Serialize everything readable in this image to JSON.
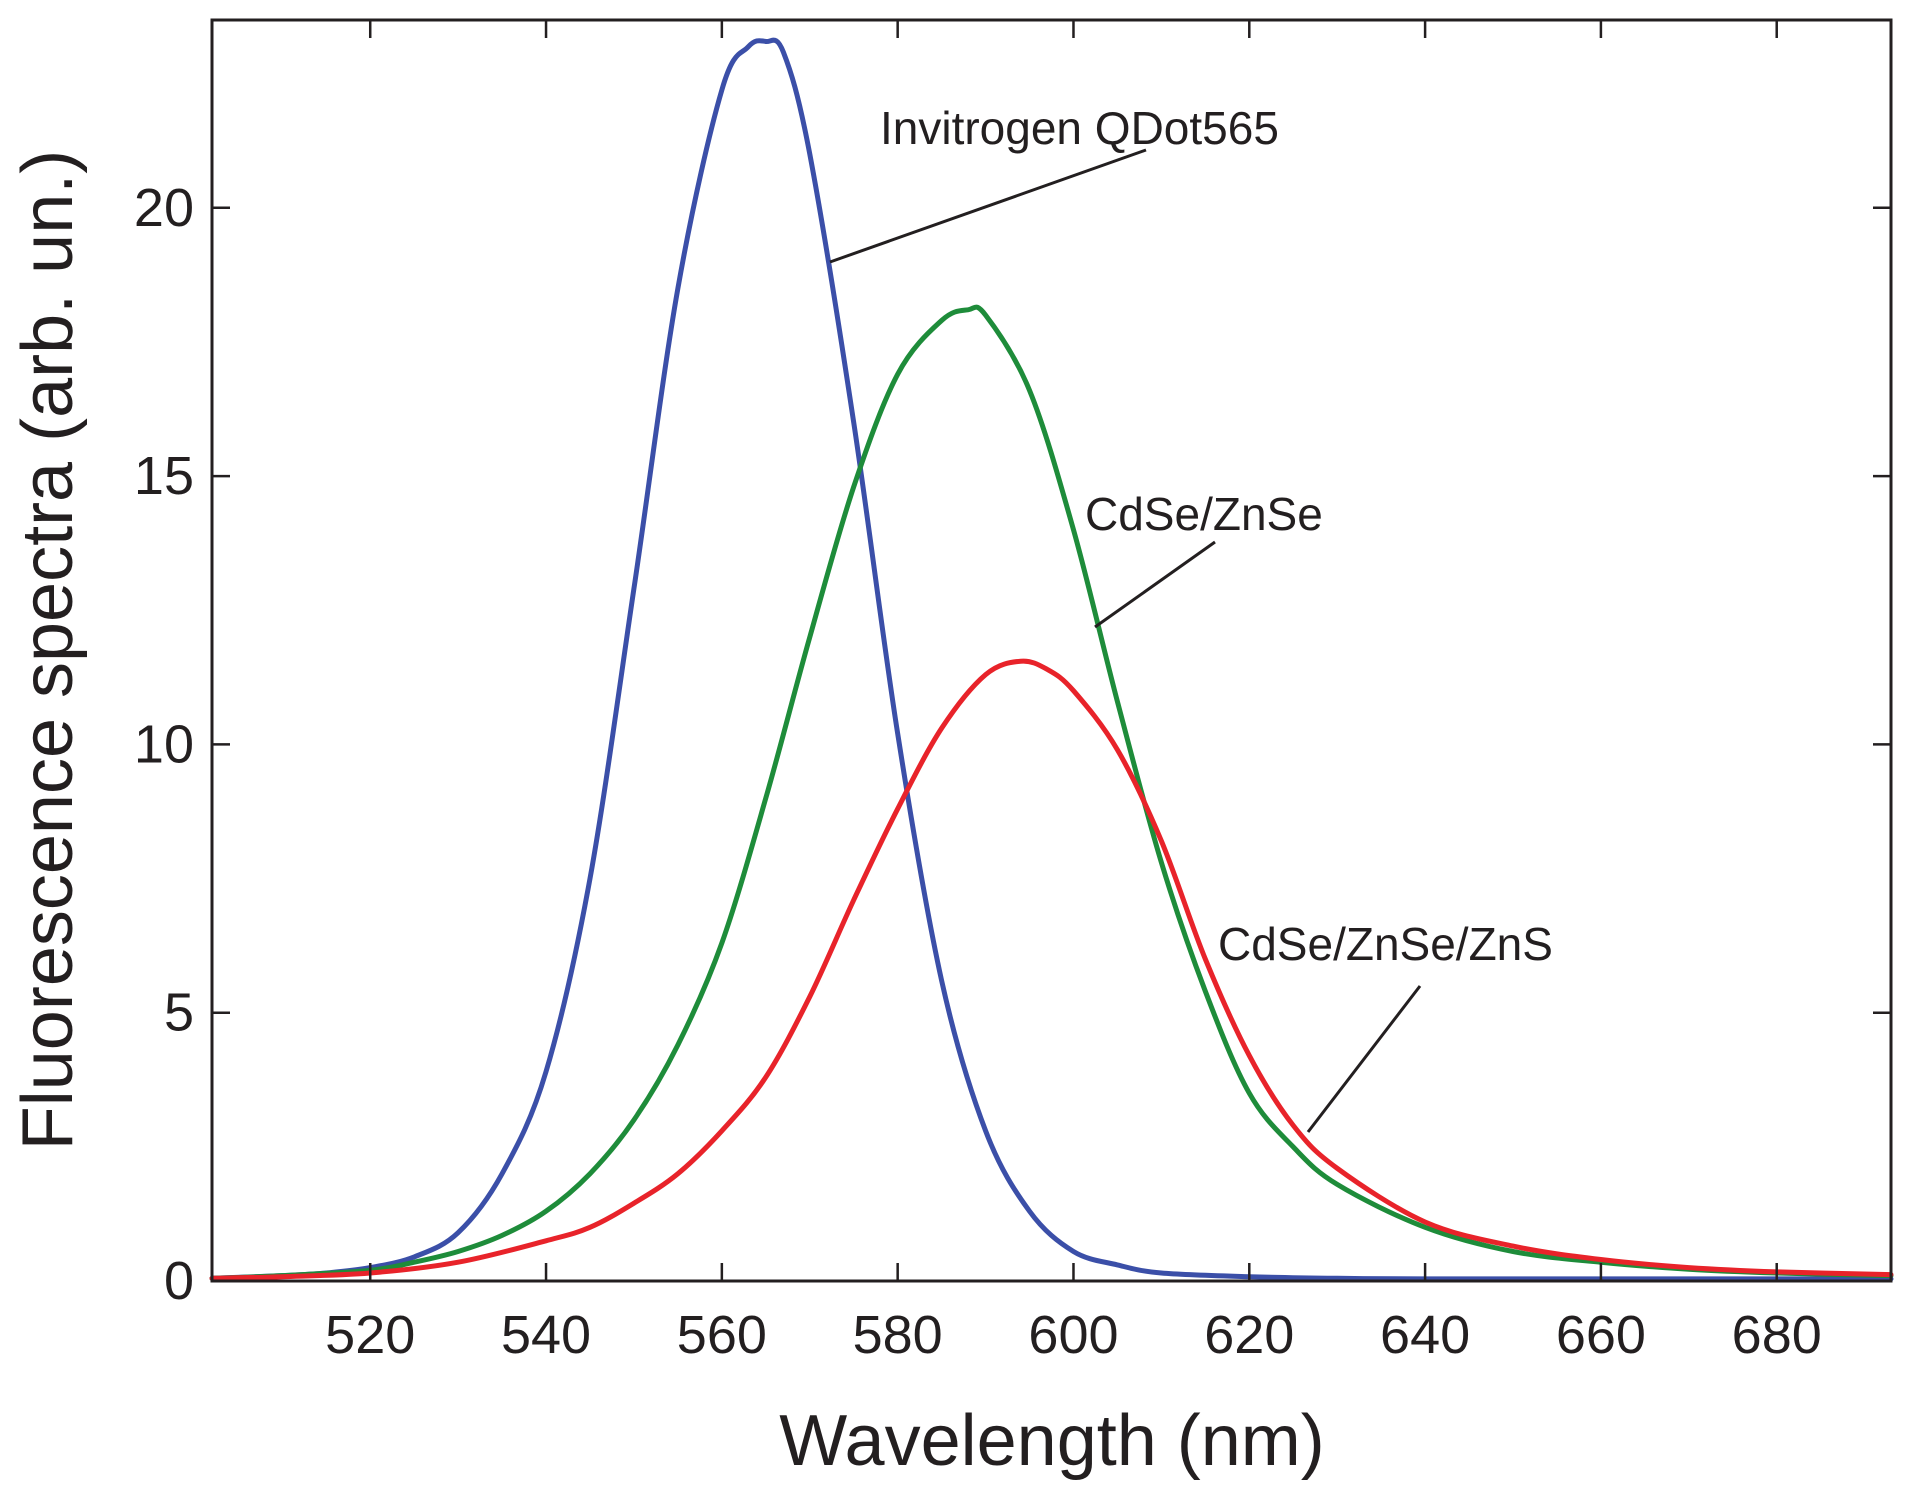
{
  "chart_data": {
    "type": "line",
    "xlabel": "Wavelength (nm)",
    "ylabel": "Fluorescence spectra (arb. un.)",
    "xlim": [
      502,
      693
    ],
    "ylim": [
      0,
      23.5
    ],
    "xticks": [
      520,
      540,
      560,
      580,
      600,
      620,
      640,
      660,
      680
    ],
    "yticks": [
      0,
      5,
      10,
      15,
      20
    ],
    "grid": false,
    "legend": "none",
    "series": [
      {
        "name": "Invitrogen QDot565",
        "color": "#3b4fa8",
        "x": [
          502,
          510,
          515,
          520,
          525,
          530,
          535,
          540,
          545,
          550,
          555,
          560,
          563,
          565,
          567,
          570,
          575,
          580,
          585,
          590,
          595,
          600,
          605,
          610,
          620,
          630,
          640,
          660,
          680,
          693
        ],
        "y": [
          0.05,
          0.1,
          0.15,
          0.25,
          0.45,
          0.9,
          2.0,
          3.9,
          7.5,
          12.9,
          18.5,
          22.2,
          23.0,
          23.1,
          22.9,
          21.0,
          16.0,
          10.2,
          5.6,
          2.8,
          1.3,
          0.55,
          0.3,
          0.15,
          0.08,
          0.05,
          0.04,
          0.04,
          0.04,
          0.04
        ]
      },
      {
        "name": "CdSe/ZnSe",
        "color": "#1e8c3a",
        "x": [
          502,
          510,
          520,
          525,
          530,
          535,
          540,
          545,
          550,
          555,
          560,
          565,
          570,
          575,
          580,
          585,
          588,
          590,
          595,
          600,
          605,
          610,
          615,
          620,
          625,
          630,
          640,
          650,
          660,
          670,
          680,
          693
        ],
        "y": [
          0.05,
          0.1,
          0.2,
          0.35,
          0.55,
          0.85,
          1.3,
          2.0,
          3.0,
          4.4,
          6.3,
          9.0,
          12.0,
          14.8,
          16.9,
          17.9,
          18.1,
          18.0,
          16.6,
          14.0,
          10.8,
          7.8,
          5.4,
          3.5,
          2.5,
          1.8,
          1.0,
          0.55,
          0.35,
          0.22,
          0.15,
          0.1
        ]
      },
      {
        "name": "CdSe/ZnSe/ZnS",
        "color": "#e8232a",
        "x": [
          502,
          510,
          520,
          530,
          540,
          545,
          550,
          555,
          560,
          565,
          570,
          575,
          580,
          585,
          590,
          594,
          597,
          600,
          605,
          610,
          615,
          620,
          625,
          630,
          640,
          650,
          660,
          670,
          680,
          693
        ],
        "y": [
          0.05,
          0.08,
          0.15,
          0.35,
          0.75,
          1.0,
          1.45,
          2.0,
          2.8,
          3.8,
          5.3,
          7.1,
          8.8,
          10.3,
          11.3,
          11.55,
          11.4,
          11.0,
          9.9,
          8.2,
          6.0,
          4.2,
          2.9,
          2.1,
          1.1,
          0.65,
          0.4,
          0.25,
          0.17,
          0.12
        ]
      }
    ],
    "annotations": [
      {
        "text": "Invitrogen QDot565",
        "series": 0
      },
      {
        "text": "CdSe/ZnSe",
        "series": 1
      },
      {
        "text": "CdSe/ZnSe/ZnS",
        "series": 2
      }
    ]
  }
}
